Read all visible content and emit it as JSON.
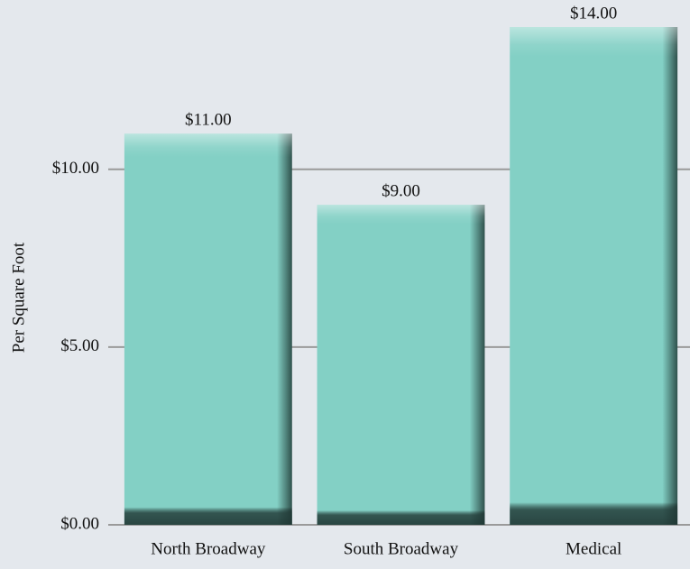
{
  "chart_data": {
    "type": "bar",
    "y_label": "Per Square Foot",
    "categories": [
      "North Broadway",
      "South Broadway",
      "Medical"
    ],
    "values": [
      11,
      9,
      14
    ],
    "value_labels": [
      "$11.00",
      "$9.00",
      "$14.00"
    ],
    "color": "#83d0c5",
    "ylim": [
      0,
      14
    ],
    "yticks": [
      {
        "value": 0,
        "label": "$0.00"
      },
      {
        "value": 5,
        "label": "$5.00"
      },
      {
        "value": 10,
        "label": "$10.00"
      }
    ],
    "grid": true
  }
}
